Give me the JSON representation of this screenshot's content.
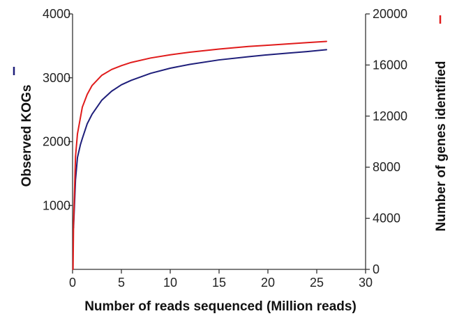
{
  "chart_data": {
    "type": "line",
    "title": "",
    "xlabel": "Number of reads sequenced (Million reads)",
    "ylabel_left": "Observed KOGs",
    "ylabel_right": "Number of genes identified",
    "xlim": [
      0,
      30
    ],
    "ylim_left": [
      0,
      4000
    ],
    "ylim_right": [
      0,
      20000
    ],
    "x_ticks": [
      0,
      5,
      10,
      15,
      20,
      25,
      30
    ],
    "y_left_ticks": [
      1000,
      2000,
      3000,
      4000
    ],
    "y_right_ticks": [
      0,
      4000,
      8000,
      12000,
      16000,
      20000
    ],
    "grid": false,
    "legend": "axis-label markers",
    "series": [
      {
        "axis": "left",
        "color": "#1e1e7a",
        "x": [
          0.1,
          0.3,
          0.5,
          0.8,
          1,
          1.5,
          2,
          3,
          4,
          5,
          6,
          8,
          10,
          12,
          15,
          18,
          20,
          22,
          24,
          26
        ],
        "values": [
          650,
          1400,
          1750,
          1950,
          2050,
          2280,
          2430,
          2650,
          2790,
          2890,
          2960,
          3070,
          3150,
          3210,
          3280,
          3330,
          3360,
          3385,
          3410,
          3440
        ]
      },
      {
        "axis": "right",
        "color": "#e01b1b",
        "x": [
          0.05,
          0.1,
          0.3,
          0.5,
          1,
          1.5,
          2,
          3,
          4,
          5,
          6,
          8,
          10,
          12,
          15,
          18,
          20,
          22,
          24,
          26
        ],
        "values": [
          0,
          3500,
          8800,
          10600,
          12700,
          13700,
          14400,
          15200,
          15650,
          15950,
          16200,
          16550,
          16800,
          17000,
          17250,
          17450,
          17550,
          17650,
          17750,
          17850
        ]
      }
    ]
  }
}
